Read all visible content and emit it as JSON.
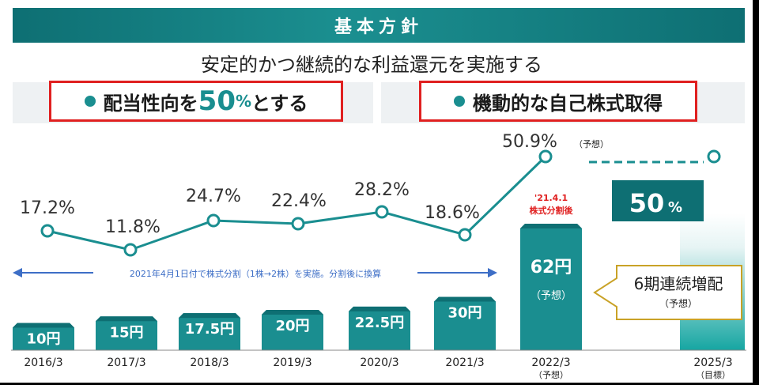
{
  "banner_title": "基本方針",
  "subtitle": "安定的かつ継続的な利益還元を実施する",
  "policy_left": {
    "prefix": "配当性向を",
    "number": "50",
    "unit": "%",
    "suffix": "とする"
  },
  "policy_right": "機動的な自己株式取得",
  "split_note": "2021年4月1日付で株式分割（1株→2株）を実施。分割後に換算",
  "split_date": "'21.4.1",
  "split_label": "株式分割後",
  "consecutive_callout": {
    "title": "6期連続増配",
    "sub": "（予想）"
  },
  "forecast_tag": "（予想）",
  "target_tag": "（目標）",
  "target_pct": {
    "number": "50",
    "unit": "%"
  },
  "colors": {
    "teal": "#1a8e90",
    "dark_teal": "#0e6f73",
    "red": "#e02020",
    "gold": "#c9a227"
  },
  "chart_data": {
    "type": "bar",
    "categories": [
      "2016/3",
      "2017/3",
      "2018/3",
      "2019/3",
      "2020/3",
      "2021/3",
      "2022/3",
      "2025/3"
    ],
    "dividend_labels": [
      "10円",
      "15円",
      "17.5円",
      "20円",
      "22.5円",
      "30円",
      "62円",
      ""
    ],
    "dividend_values": [
      10,
      15,
      17.5,
      20,
      22.5,
      30,
      62,
      null
    ],
    "payout_ratio": [
      17.2,
      11.8,
      24.7,
      22.4,
      28.2,
      18.6,
      50.9,
      50
    ],
    "payout_labels": [
      "17.2%",
      "11.8%",
      "24.7%",
      "22.4%",
      "28.2%",
      "18.6%",
      "50.9%",
      ""
    ],
    "forecast_sub": "（予想）",
    "bar_sub_2022": "（予想）",
    "legend": []
  }
}
